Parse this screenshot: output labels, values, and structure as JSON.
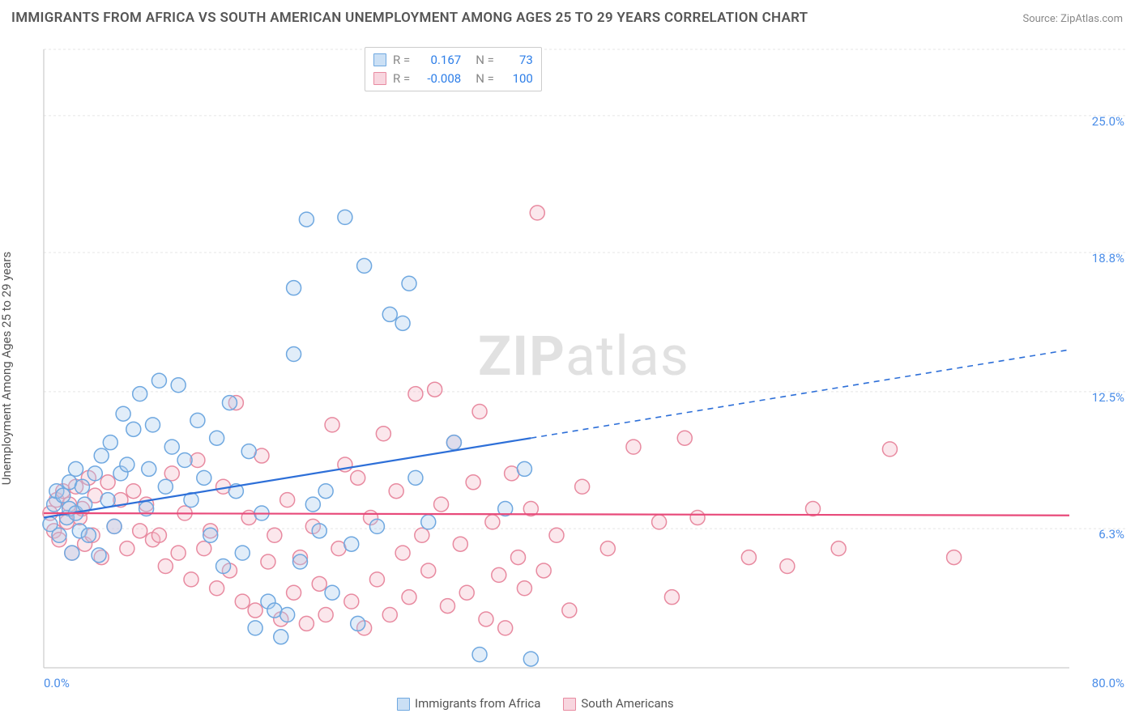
{
  "title": "IMMIGRANTS FROM AFRICA VS SOUTH AMERICAN UNEMPLOYMENT AMONG AGES 25 TO 29 YEARS CORRELATION CHART",
  "source": "Source: ZipAtlas.com",
  "y_axis_label": "Unemployment Among Ages 25 to 29 years",
  "watermark": {
    "bold": "ZIP",
    "light": "atlas"
  },
  "chart": {
    "type": "scatter",
    "background_color": "#ffffff",
    "grid_color": "#e5e5e5",
    "axis_color": "#cccccc",
    "xlim": [
      0,
      80
    ],
    "ylim": [
      0,
      28
    ],
    "x_ticks": [
      {
        "v": 0,
        "label": "0.0%"
      },
      {
        "v": 80,
        "label": "80.0%"
      }
    ],
    "y_ticks": [
      {
        "v": 6.3,
        "label": "6.3%"
      },
      {
        "v": 12.5,
        "label": "12.5%"
      },
      {
        "v": 18.8,
        "label": "18.8%"
      },
      {
        "v": 25.0,
        "label": "25.0%"
      }
    ],
    "marker_radius": 9,
    "marker_stroke_width": 1.5,
    "marker_fill_opacity": 0.35,
    "series": [
      {
        "name": "Immigrants from Africa",
        "color_stroke": "#6fa8e0",
        "color_fill": "#a9cbef",
        "R": "0.167",
        "N": "73",
        "regression": {
          "x1": 0,
          "y1": 6.8,
          "x2": 38,
          "y2": 10.4,
          "dash_x2": 80,
          "dash_y2": 14.4,
          "color": "#2d6fd8",
          "width": 2.2
        },
        "points": [
          [
            0.5,
            6.5
          ],
          [
            0.8,
            7.4
          ],
          [
            1.0,
            8.0
          ],
          [
            1.2,
            6.0
          ],
          [
            1.5,
            7.8
          ],
          [
            1.8,
            6.8
          ],
          [
            2.0,
            7.2
          ],
          [
            2.0,
            8.4
          ],
          [
            2.2,
            5.2
          ],
          [
            2.5,
            7.0
          ],
          [
            2.5,
            9.0
          ],
          [
            2.8,
            6.2
          ],
          [
            3.0,
            8.2
          ],
          [
            3.2,
            7.4
          ],
          [
            3.5,
            6.0
          ],
          [
            4.0,
            8.8
          ],
          [
            4.3,
            5.1
          ],
          [
            4.5,
            9.6
          ],
          [
            5.0,
            7.6
          ],
          [
            5.2,
            10.2
          ],
          [
            5.5,
            6.4
          ],
          [
            6.0,
            8.8
          ],
          [
            6.2,
            11.5
          ],
          [
            6.5,
            9.2
          ],
          [
            7.0,
            10.8
          ],
          [
            7.5,
            12.4
          ],
          [
            8.0,
            7.2
          ],
          [
            8.2,
            9.0
          ],
          [
            8.5,
            11.0
          ],
          [
            9.0,
            13.0
          ],
          [
            9.5,
            8.2
          ],
          [
            10.0,
            10.0
          ],
          [
            10.5,
            12.8
          ],
          [
            11.0,
            9.4
          ],
          [
            11.5,
            7.6
          ],
          [
            12.0,
            11.2
          ],
          [
            12.5,
            8.6
          ],
          [
            13.0,
            6.0
          ],
          [
            13.5,
            10.4
          ],
          [
            14.0,
            4.6
          ],
          [
            14.5,
            12.0
          ],
          [
            15.0,
            8.0
          ],
          [
            15.5,
            5.2
          ],
          [
            16.0,
            9.8
          ],
          [
            16.5,
            1.8
          ],
          [
            17.0,
            7.0
          ],
          [
            17.5,
            3.0
          ],
          [
            18.0,
            2.6
          ],
          [
            18.5,
            1.4
          ],
          [
            19.0,
            2.4
          ],
          [
            19.5,
            14.2
          ],
          [
            19.5,
            17.2
          ],
          [
            20.0,
            4.8
          ],
          [
            20.5,
            20.3
          ],
          [
            21.0,
            7.4
          ],
          [
            21.5,
            6.2
          ],
          [
            22.0,
            8.0
          ],
          [
            22.5,
            3.4
          ],
          [
            23.5,
            20.4
          ],
          [
            24.0,
            5.6
          ],
          [
            24.5,
            2.0
          ],
          [
            25.0,
            18.2
          ],
          [
            26.0,
            6.4
          ],
          [
            27.0,
            16.0
          ],
          [
            28.0,
            15.6
          ],
          [
            28.5,
            17.4
          ],
          [
            29.0,
            8.6
          ],
          [
            30.0,
            6.6
          ],
          [
            32.0,
            10.2
          ],
          [
            34.0,
            0.6
          ],
          [
            36.0,
            7.2
          ],
          [
            37.5,
            9.0
          ],
          [
            38.0,
            0.4
          ]
        ]
      },
      {
        "name": "South Americans",
        "color_stroke": "#e88aa0",
        "color_fill": "#f4bbc9",
        "R": "-0.008",
        "N": "100",
        "regression": {
          "x1": 0,
          "y1": 7.0,
          "x2": 80,
          "y2": 6.9,
          "color": "#e84a7a",
          "width": 2.2
        },
        "points": [
          [
            0.5,
            7.0
          ],
          [
            0.8,
            6.2
          ],
          [
            1.0,
            7.6
          ],
          [
            1.2,
            5.8
          ],
          [
            1.5,
            8.0
          ],
          [
            1.8,
            6.6
          ],
          [
            2.0,
            7.4
          ],
          [
            2.2,
            5.2
          ],
          [
            2.5,
            8.2
          ],
          [
            2.8,
            6.8
          ],
          [
            3.0,
            7.2
          ],
          [
            3.2,
            5.6
          ],
          [
            3.5,
            8.6
          ],
          [
            3.8,
            6.0
          ],
          [
            4.0,
            7.8
          ],
          [
            4.5,
            5.0
          ],
          [
            5.0,
            8.4
          ],
          [
            5.5,
            6.4
          ],
          [
            6.0,
            7.6
          ],
          [
            6.5,
            5.4
          ],
          [
            7.0,
            8.0
          ],
          [
            7.5,
            6.2
          ],
          [
            8.0,
            7.4
          ],
          [
            8.5,
            5.8
          ],
          [
            9.0,
            6.0
          ],
          [
            9.5,
            4.6
          ],
          [
            10.0,
            8.8
          ],
          [
            10.5,
            5.2
          ],
          [
            11.0,
            7.0
          ],
          [
            11.5,
            4.0
          ],
          [
            12.0,
            9.4
          ],
          [
            12.5,
            5.4
          ],
          [
            13.0,
            6.2
          ],
          [
            13.5,
            3.6
          ],
          [
            14.0,
            8.2
          ],
          [
            14.5,
            4.4
          ],
          [
            15.0,
            12.0
          ],
          [
            15.5,
            3.0
          ],
          [
            16.0,
            6.8
          ],
          [
            16.5,
            2.6
          ],
          [
            17.0,
            9.6
          ],
          [
            17.5,
            4.8
          ],
          [
            18.0,
            6.0
          ],
          [
            18.5,
            2.2
          ],
          [
            19.0,
            7.6
          ],
          [
            19.5,
            3.4
          ],
          [
            20.0,
            5.0
          ],
          [
            20.5,
            2.0
          ],
          [
            21.0,
            6.4
          ],
          [
            21.5,
            3.8
          ],
          [
            22.0,
            2.4
          ],
          [
            22.5,
            11.0
          ],
          [
            23.0,
            5.4
          ],
          [
            23.5,
            9.2
          ],
          [
            24.0,
            3.0
          ],
          [
            24.5,
            8.6
          ],
          [
            25.0,
            1.8
          ],
          [
            25.5,
            6.8
          ],
          [
            26.0,
            4.0
          ],
          [
            26.5,
            10.6
          ],
          [
            27.0,
            2.4
          ],
          [
            27.5,
            8.0
          ],
          [
            28.0,
            5.2
          ],
          [
            28.5,
            3.2
          ],
          [
            29.0,
            12.4
          ],
          [
            29.5,
            6.0
          ],
          [
            30.0,
            4.4
          ],
          [
            30.5,
            12.6
          ],
          [
            31.0,
            7.4
          ],
          [
            31.5,
            2.8
          ],
          [
            32.0,
            10.2
          ],
          [
            32.5,
            5.6
          ],
          [
            33.0,
            3.4
          ],
          [
            33.5,
            8.4
          ],
          [
            34.0,
            11.6
          ],
          [
            34.5,
            2.2
          ],
          [
            35.0,
            6.6
          ],
          [
            35.5,
            4.2
          ],
          [
            36.0,
            1.8
          ],
          [
            36.5,
            8.8
          ],
          [
            37.0,
            5.0
          ],
          [
            37.5,
            3.6
          ],
          [
            38.0,
            7.2
          ],
          [
            38.5,
            20.6
          ],
          [
            39.0,
            4.4
          ],
          [
            40.0,
            6.0
          ],
          [
            41.0,
            2.6
          ],
          [
            42.0,
            8.2
          ],
          [
            44.0,
            5.4
          ],
          [
            46.0,
            10.0
          ],
          [
            48.0,
            6.6
          ],
          [
            49.0,
            3.2
          ],
          [
            50.0,
            10.4
          ],
          [
            51.0,
            6.8
          ],
          [
            55.0,
            5.0
          ],
          [
            58.0,
            4.6
          ],
          [
            60.0,
            7.2
          ],
          [
            62.0,
            5.4
          ],
          [
            66.0,
            9.9
          ],
          [
            71.0,
            5.0
          ]
        ]
      }
    ]
  }
}
